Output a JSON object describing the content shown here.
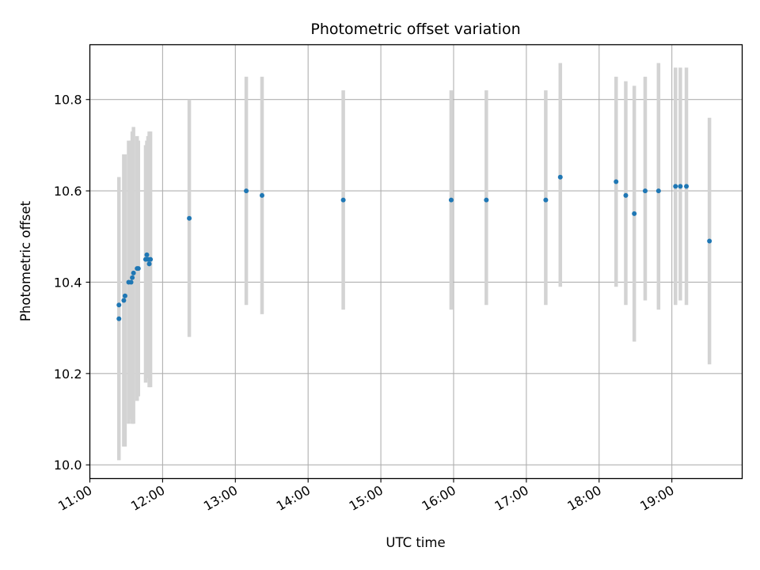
{
  "chart_data": {
    "type": "scatter",
    "title": "Photometric offset variation",
    "xlabel": "UTC time",
    "ylabel": "Photometric offset",
    "x_ticks": [
      "11:00",
      "12:00",
      "13:00",
      "14:00",
      "15:00",
      "16:00",
      "17:00",
      "18:00",
      "19:00"
    ],
    "y_ticks": [
      "10.0",
      "10.2",
      "10.4",
      "10.6",
      "10.8"
    ],
    "xlim": [
      "11:00",
      "19:58"
    ],
    "ylim": [
      9.97,
      10.92
    ],
    "grid": true,
    "colors": {
      "point": "#1f77b4",
      "errorbar": "#d3d3d3",
      "grid": "#b0b0b0"
    },
    "points": [
      {
        "x": "11:24",
        "y": 10.32,
        "lo": 10.01,
        "hi": 10.63
      },
      {
        "x": "11:24",
        "y": 10.35,
        "lo": 10.07,
        "hi": 10.63
      },
      {
        "x": "11:28",
        "y": 10.36,
        "lo": 10.04,
        "hi": 10.68
      },
      {
        "x": "11:29",
        "y": 10.37,
        "lo": 10.04,
        "hi": 10.68
      },
      {
        "x": "11:32",
        "y": 10.4,
        "lo": 10.09,
        "hi": 10.71
      },
      {
        "x": "11:34",
        "y": 10.4,
        "lo": 10.1,
        "hi": 10.71
      },
      {
        "x": "11:35",
        "y": 10.41,
        "lo": 10.09,
        "hi": 10.73
      },
      {
        "x": "11:36",
        "y": 10.42,
        "lo": 10.09,
        "hi": 10.74
      },
      {
        "x": "11:39",
        "y": 10.43,
        "lo": 10.14,
        "hi": 10.72
      },
      {
        "x": "11:40",
        "y": 10.43,
        "lo": 10.15,
        "hi": 10.71
      },
      {
        "x": "11:46",
        "y": 10.45,
        "lo": 10.18,
        "hi": 10.7
      },
      {
        "x": "11:47",
        "y": 10.46,
        "lo": 10.19,
        "hi": 10.71
      },
      {
        "x": "11:48",
        "y": 10.45,
        "lo": 10.19,
        "hi": 10.72
      },
      {
        "x": "11:49",
        "y": 10.44,
        "lo": 10.17,
        "hi": 10.73
      },
      {
        "x": "11:50",
        "y": 10.45,
        "lo": 10.17,
        "hi": 10.73
      },
      {
        "x": "12:22",
        "y": 10.54,
        "lo": 10.28,
        "hi": 10.8
      },
      {
        "x": "13:09",
        "y": 10.6,
        "lo": 10.35,
        "hi": 10.85
      },
      {
        "x": "13:22",
        "y": 10.59,
        "lo": 10.33,
        "hi": 10.85
      },
      {
        "x": "14:29",
        "y": 10.58,
        "lo": 10.34,
        "hi": 10.82
      },
      {
        "x": "15:58",
        "y": 10.58,
        "lo": 10.34,
        "hi": 10.82
      },
      {
        "x": "16:27",
        "y": 10.58,
        "lo": 10.35,
        "hi": 10.82
      },
      {
        "x": "17:16",
        "y": 10.58,
        "lo": 10.35,
        "hi": 10.82
      },
      {
        "x": "17:28",
        "y": 10.63,
        "lo": 10.39,
        "hi": 10.88
      },
      {
        "x": "18:14",
        "y": 10.62,
        "lo": 10.39,
        "hi": 10.85
      },
      {
        "x": "18:22",
        "y": 10.59,
        "lo": 10.35,
        "hi": 10.84
      },
      {
        "x": "18:29",
        "y": 10.55,
        "lo": 10.27,
        "hi": 10.83
      },
      {
        "x": "18:38",
        "y": 10.6,
        "lo": 10.36,
        "hi": 10.85
      },
      {
        "x": "18:49",
        "y": 10.6,
        "lo": 10.34,
        "hi": 10.88
      },
      {
        "x": "19:03",
        "y": 10.61,
        "lo": 10.35,
        "hi": 10.87
      },
      {
        "x": "19:07",
        "y": 10.61,
        "lo": 10.36,
        "hi": 10.87
      },
      {
        "x": "19:12",
        "y": 10.61,
        "lo": 10.35,
        "hi": 10.87
      },
      {
        "x": "19:31",
        "y": 10.49,
        "lo": 10.22,
        "hi": 10.76
      }
    ]
  }
}
